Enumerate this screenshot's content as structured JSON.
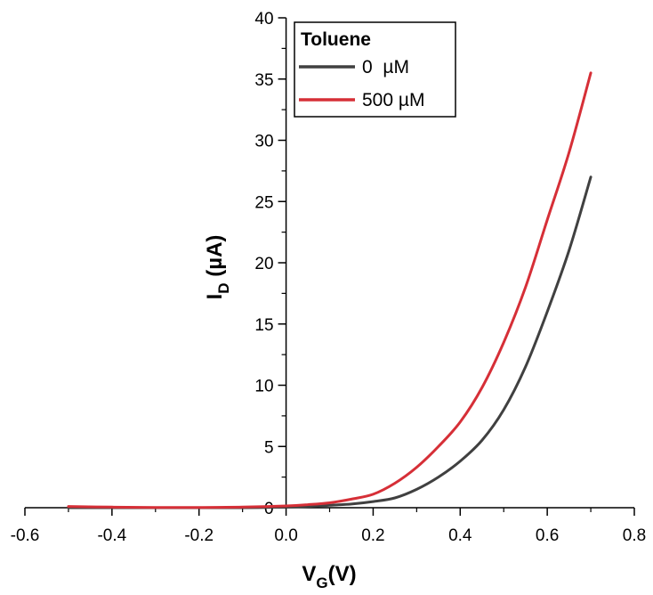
{
  "chart_data": {
    "type": "line",
    "xlabel": {
      "main": "V",
      "sub": "G",
      "rest": "(V)"
    },
    "ylabel": {
      "main": "I",
      "sub": "D",
      "rest": " (µA)"
    },
    "xlim": [
      -0.6,
      0.8
    ],
    "ylim": [
      0,
      40
    ],
    "x_ticks": [
      -0.6,
      -0.4,
      -0.2,
      0.0,
      0.2,
      0.4,
      0.6,
      0.8
    ],
    "x_tick_labels": [
      "-0.6",
      "-0.4",
      "-0.2",
      "0.0",
      "0.2",
      "0.4",
      "0.6",
      "0.8"
    ],
    "y_ticks": [
      0,
      5,
      10,
      15,
      20,
      25,
      30,
      35,
      40
    ],
    "y_tick_labels": [
      "0",
      "5",
      "10",
      "15",
      "20",
      "25",
      "30",
      "35",
      "40"
    ],
    "grid": false,
    "legend": {
      "title": "Toluene",
      "placement": "top-left"
    },
    "series": [
      {
        "name": "0  µM",
        "color": "#404040",
        "x": [
          -0.5,
          -0.4,
          -0.3,
          -0.2,
          -0.1,
          0.0,
          0.05,
          0.1,
          0.15,
          0.2,
          0.25,
          0.3,
          0.35,
          0.4,
          0.45,
          0.5,
          0.55,
          0.6,
          0.65,
          0.7
        ],
        "y": [
          0,
          0,
          0,
          0,
          0,
          0.05,
          0.1,
          0.2,
          0.3,
          0.5,
          0.8,
          1.5,
          2.5,
          3.8,
          5.5,
          8.0,
          11.5,
          16.0,
          21.0,
          27.0
        ]
      },
      {
        "name": "500 µM",
        "color": "#d62f37",
        "x": [
          -0.5,
          -0.4,
          -0.3,
          -0.2,
          -0.1,
          0.0,
          0.05,
          0.1,
          0.15,
          0.2,
          0.25,
          0.3,
          0.35,
          0.4,
          0.45,
          0.5,
          0.55,
          0.6,
          0.65,
          0.7
        ],
        "y": [
          0.1,
          0.05,
          0.02,
          0.02,
          0.05,
          0.15,
          0.25,
          0.4,
          0.7,
          1.1,
          2.0,
          3.3,
          5.0,
          7.0,
          9.8,
          13.5,
          18.0,
          23.5,
          29.0,
          35.5
        ]
      }
    ]
  }
}
